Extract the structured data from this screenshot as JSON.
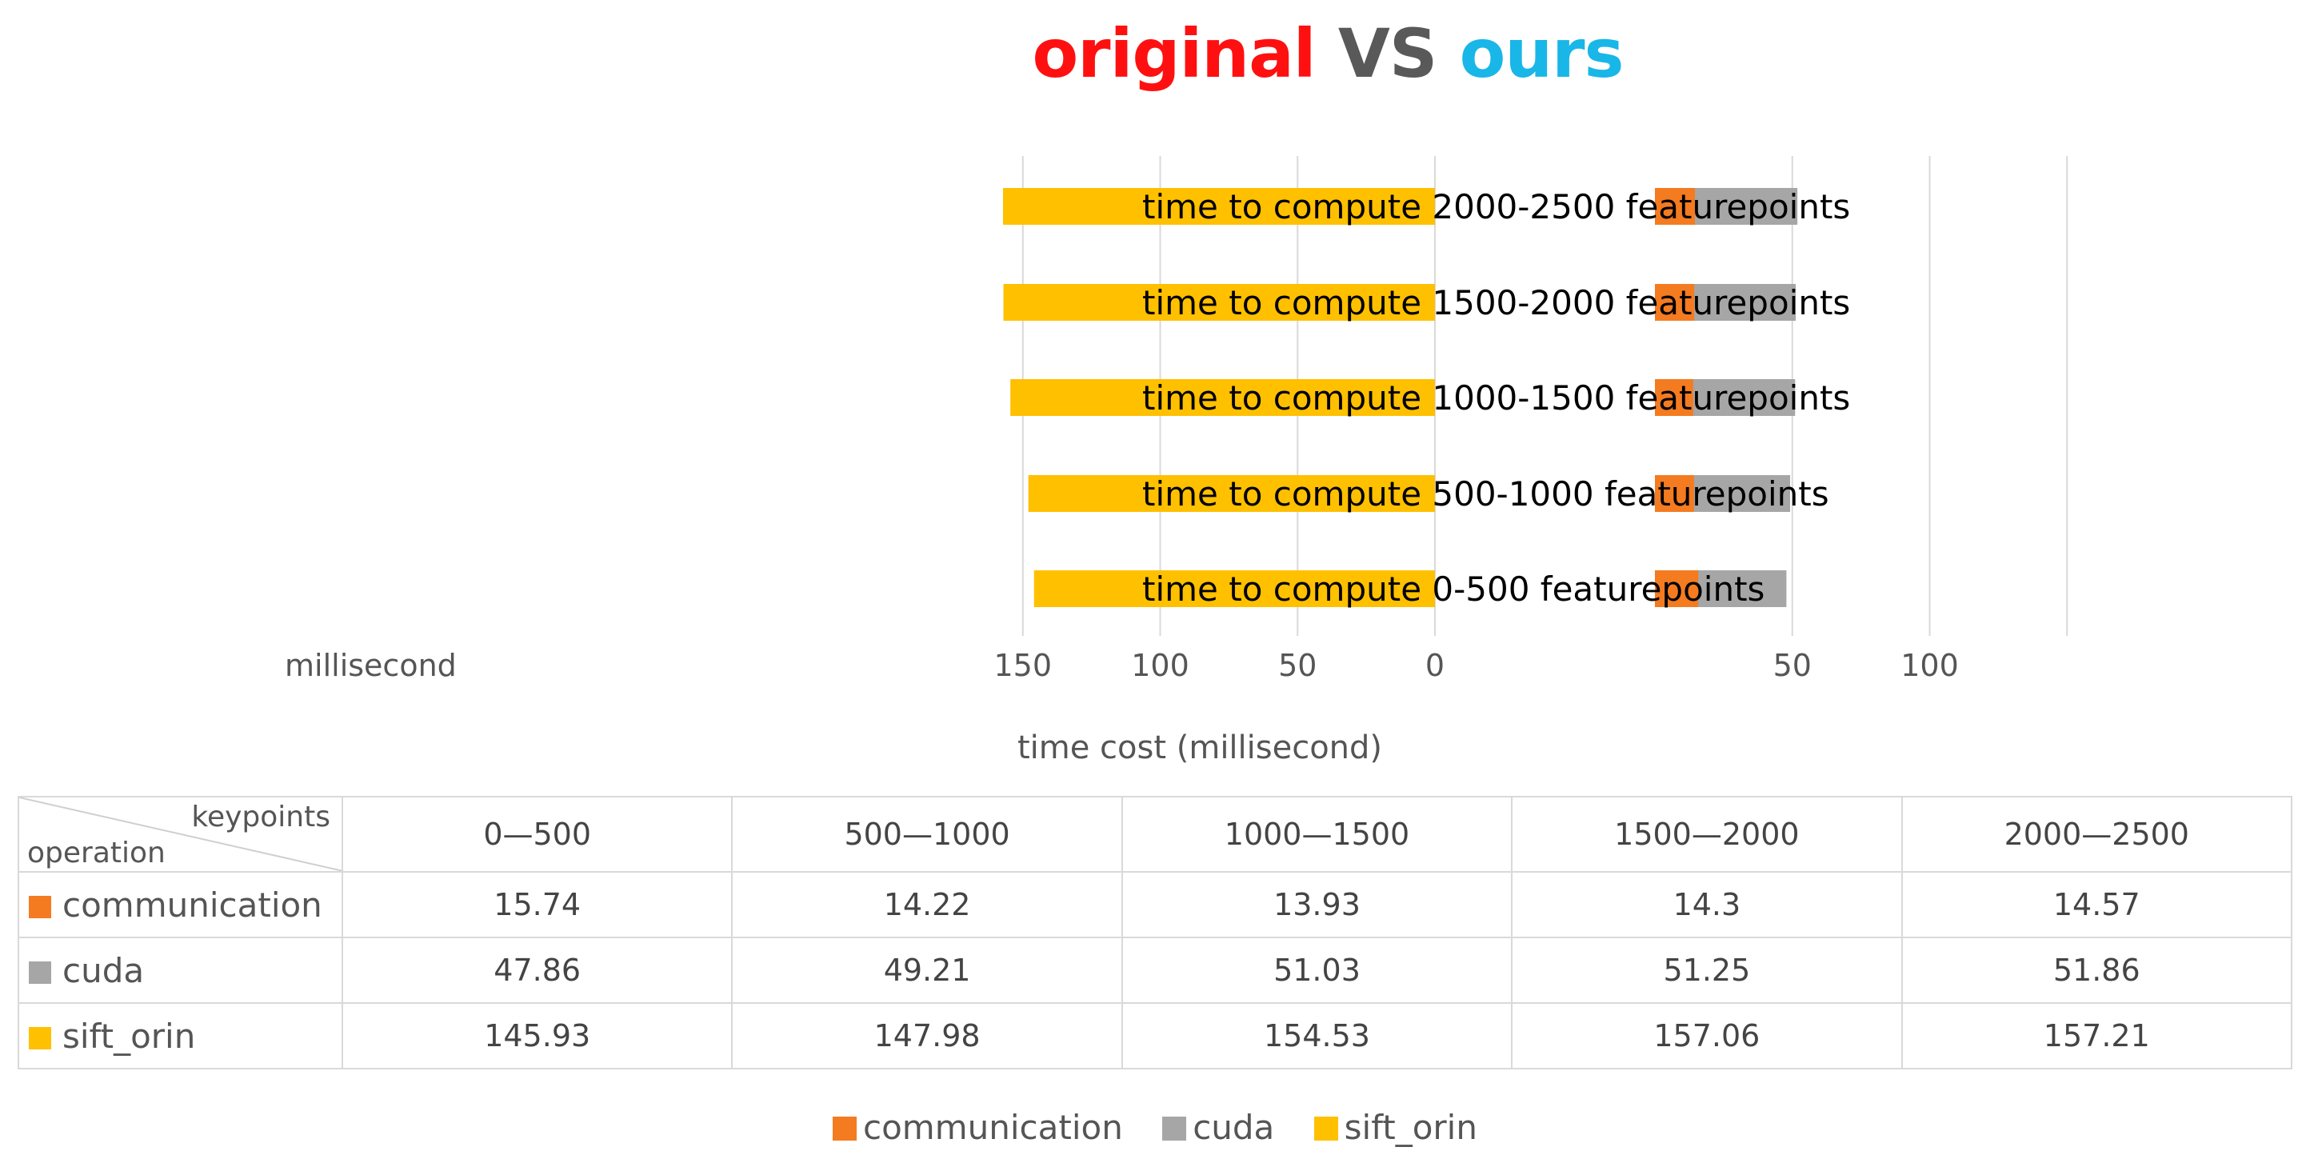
{
  "chart_data": {
    "type": "bar",
    "title_parts": [
      "original",
      "VS",
      "ours"
    ],
    "xlabel": "time cost (millisecond)",
    "unit_label": "millisecond",
    "left_ticks": [
      "150",
      "100",
      "50",
      "0"
    ],
    "right_ticks": [
      "50",
      "100"
    ],
    "categories": [
      "0-500",
      "500-1000",
      "1000-1500",
      "1500-2000",
      "2000-2500"
    ],
    "row_labels": [
      "time to compute 0-500 featurepoints",
      "time to compute 500-1000 featurepoints",
      "time to compute 1000-1500 featurepoints",
      "time to compute 1500-2000 featurepoints",
      "time to compute 2000-2500 featurepoints"
    ],
    "series": [
      {
        "name": "communication",
        "values": [
          15.74,
          14.22,
          13.93,
          14.3,
          14.57
        ]
      },
      {
        "name": "cuda",
        "values": [
          47.86,
          49.21,
          51.03,
          51.25,
          51.86
        ]
      },
      {
        "name": "sift_orin",
        "values": [
          145.93,
          147.98,
          154.53,
          157.06,
          157.21
        ]
      }
    ],
    "colors": {
      "communication": "#f47b20",
      "cuda": "#a6a6a6",
      "sift_orin": "#ffc000"
    },
    "title_colors": {
      "original": "#ff1010",
      "VS": "#595959",
      "ours": "#19b6e8"
    },
    "legend_position": "bottom",
    "grid": true
  },
  "table": {
    "corner_top": "keypoints",
    "corner_bottom": "operation",
    "columns": [
      "0—500",
      "500—1000",
      "1000—1500",
      "1500—2000",
      "2000—2500"
    ],
    "rows": [
      {
        "label": "communication",
        "values": [
          "15.74",
          "14.22",
          "13.93",
          "14.3",
          "14.57"
        ]
      },
      {
        "label": "cuda",
        "values": [
          "47.86",
          "49.21",
          "51.03",
          "51.25",
          "51.86"
        ]
      },
      {
        "label": "sift_orin",
        "values": [
          "145.93",
          "147.98",
          "154.53",
          "157.06",
          "157.21"
        ]
      }
    ]
  },
  "legend": [
    "communication",
    "cuda",
    "sift_orin"
  ]
}
